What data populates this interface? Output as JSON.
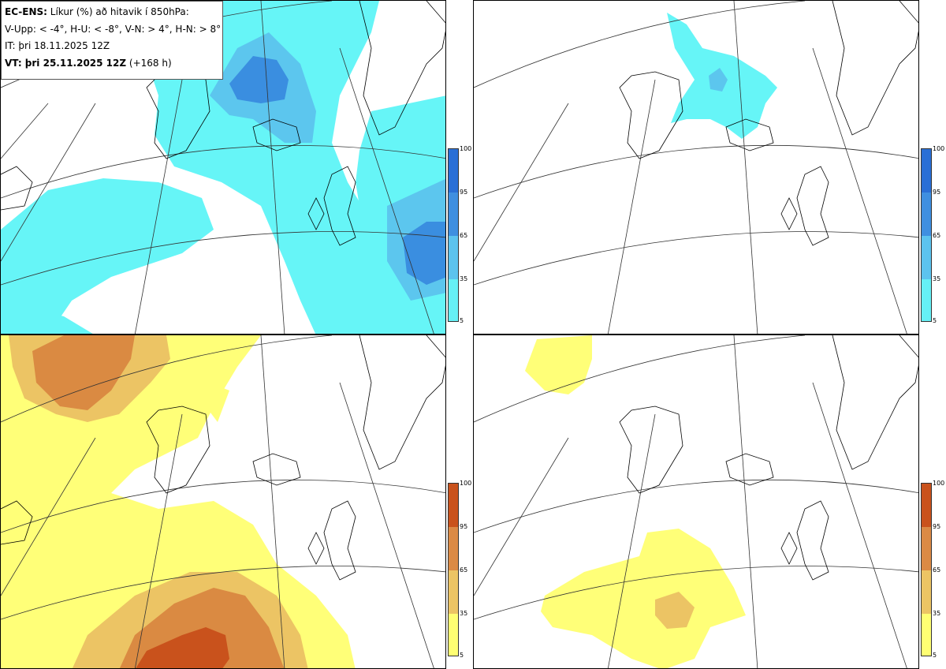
{
  "info": {
    "title_bold": "EC-ENS:",
    "title_rest": "Líkur (%) að hitavik í 850hPa:",
    "thresholds": "V-Upp: < -4°, H-U: < -8°, V-N: > 4°, H-N: > 8°",
    "it": "IT: þri 18.11.2025 12Z",
    "vt_bold": "VT: þri 25.11.2025 12Z",
    "vt_rest": "(+168 h)"
  },
  "colorbar_cold": {
    "labels": [
      "100",
      "95",
      "65",
      "35",
      "5"
    ],
    "colors": [
      "#2a6fd6",
      "#3f8fe0",
      "#5cc3ee",
      "#66f0f5"
    ]
  },
  "colorbar_warm": {
    "labels": [
      "100",
      "95",
      "65",
      "35",
      "5"
    ],
    "colors": [
      "#c9521c",
      "#db8a45",
      "#ecc464",
      "#ffff73"
    ]
  },
  "fill_colors": {
    "cold_light": "#66f5f7",
    "cold_mid": "#5cc6ee",
    "cold_dark": "#3a8ee0",
    "warm_light": "#ffff78",
    "warm_mid": "#ecc464",
    "warm_dark": "#da8a42",
    "warm_darkest": "#c9521c"
  }
}
